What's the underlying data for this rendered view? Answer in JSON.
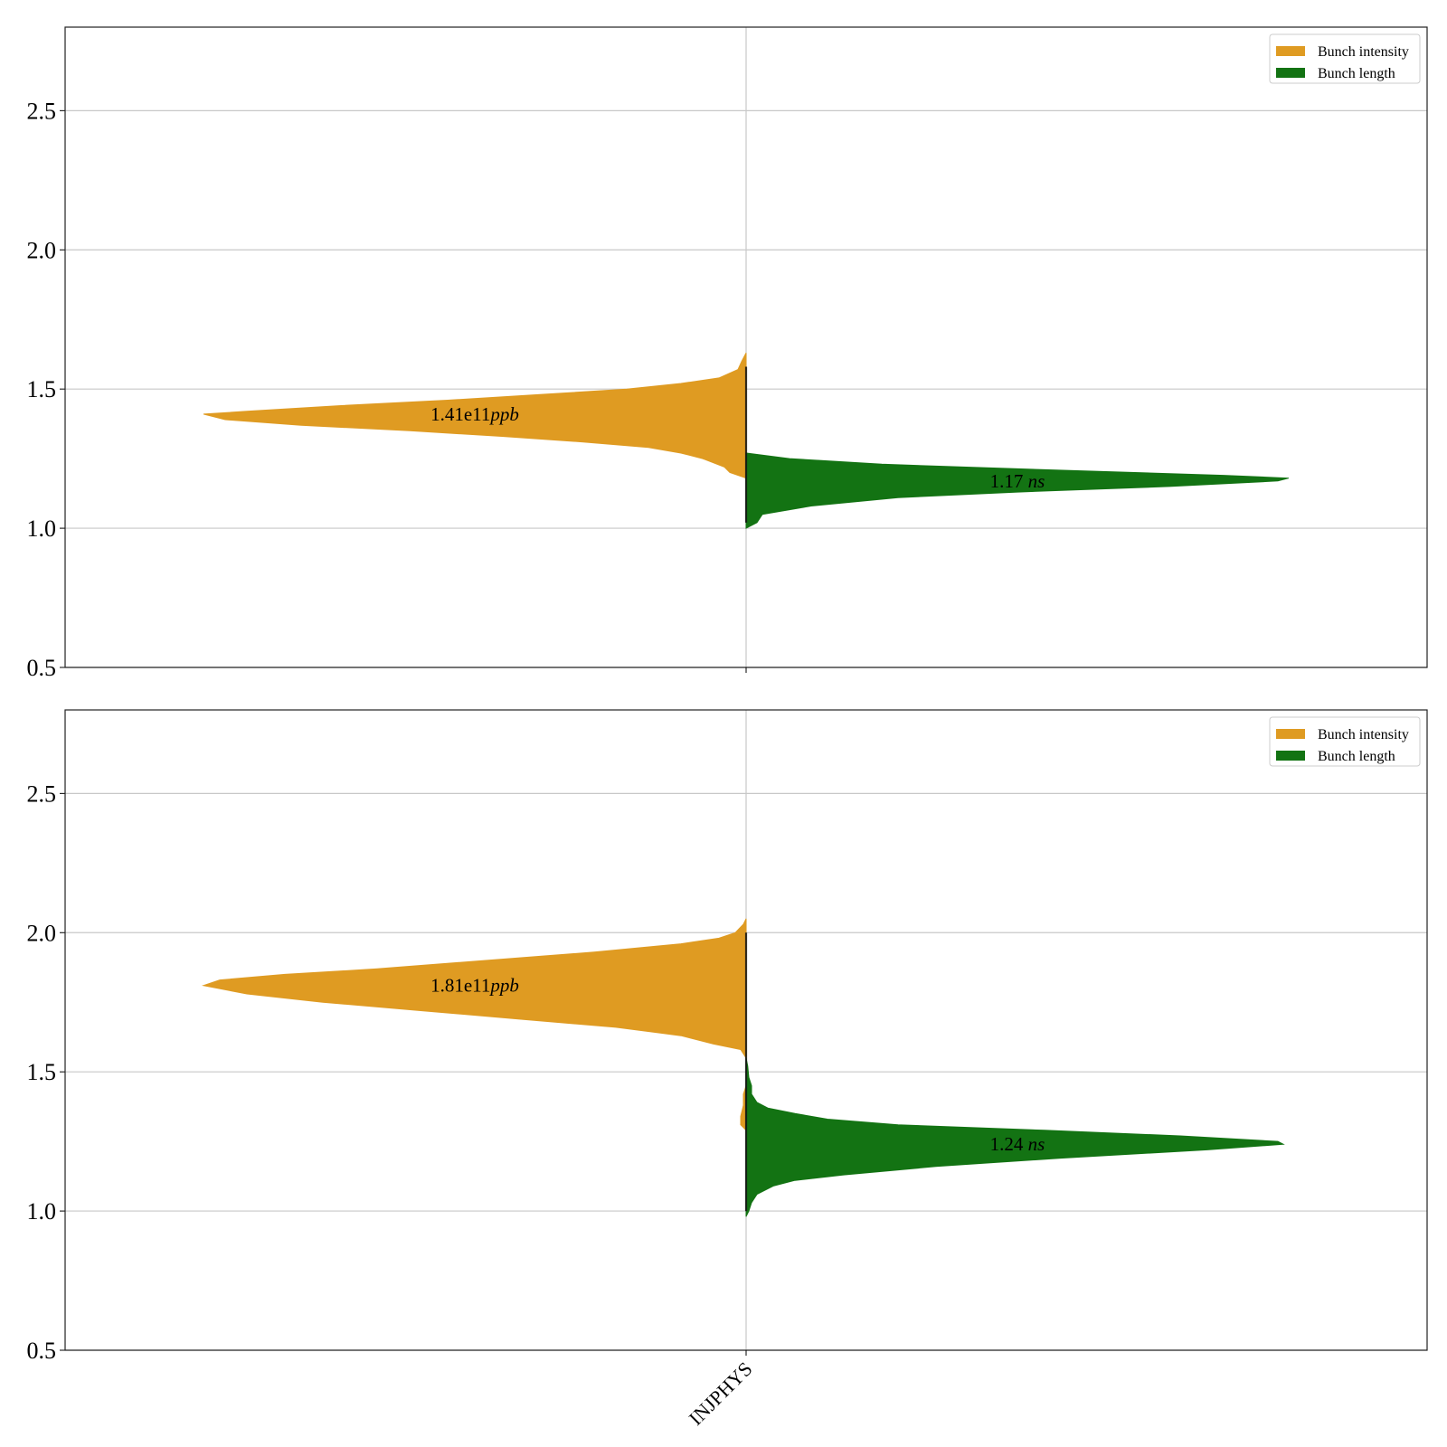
{
  "colors": {
    "intensity": "#df9b22",
    "length": "#137313",
    "grid": "#c8c8c8",
    "frame": "#222222",
    "median_line": "#111111"
  },
  "legend": {
    "placement": "upper-right",
    "entries": [
      {
        "label": "Bunch intensity",
        "series": "intensity"
      },
      {
        "label": "Bunch length",
        "series": "length"
      }
    ]
  },
  "x_category_label": "INJPHYS",
  "chart_data": [
    {
      "type": "split-violin",
      "panel": "top",
      "categories": [
        "INJPHYS"
      ],
      "ylim": [
        0.5,
        2.8
      ],
      "yticks": [
        "0.5",
        "1.0",
        "1.5",
        "2.0",
        "2.5"
      ],
      "grid": "horizontal",
      "legend": [
        "Bunch intensity",
        "Bunch length"
      ],
      "series": [
        {
          "name": "Bunch intensity",
          "side": "left",
          "annotation": {
            "value": "1.41e11",
            "unit": "ppb"
          },
          "median": 1.41,
          "profile": [
            [
              1.18,
              0.0
            ],
            [
              1.2,
              0.03
            ],
            [
              1.22,
              0.04
            ],
            [
              1.25,
              0.08
            ],
            [
              1.27,
              0.12
            ],
            [
              1.29,
              0.18
            ],
            [
              1.31,
              0.3
            ],
            [
              1.33,
              0.45
            ],
            [
              1.35,
              0.62
            ],
            [
              1.37,
              0.82
            ],
            [
              1.39,
              0.96
            ],
            [
              1.41,
              1.0
            ],
            [
              1.42,
              0.92
            ],
            [
              1.44,
              0.75
            ],
            [
              1.46,
              0.55
            ],
            [
              1.48,
              0.38
            ],
            [
              1.5,
              0.22
            ],
            [
              1.52,
              0.12
            ],
            [
              1.54,
              0.05
            ],
            [
              1.57,
              0.015
            ],
            [
              1.6,
              0.008
            ],
            [
              1.63,
              0.0
            ]
          ]
        },
        {
          "name": "Bunch length",
          "side": "right",
          "annotation": {
            "value": "1.17",
            "unit": "ns"
          },
          "median": 1.17,
          "profile": [
            [
              1.0,
              0.0
            ],
            [
              1.02,
              0.02
            ],
            [
              1.05,
              0.03
            ],
            [
              1.08,
              0.12
            ],
            [
              1.11,
              0.28
            ],
            [
              1.13,
              0.5
            ],
            [
              1.15,
              0.78
            ],
            [
              1.17,
              0.98
            ],
            [
              1.18,
              1.0
            ],
            [
              1.19,
              0.88
            ],
            [
              1.21,
              0.55
            ],
            [
              1.23,
              0.25
            ],
            [
              1.25,
              0.08
            ],
            [
              1.27,
              0.0
            ]
          ]
        }
      ]
    },
    {
      "type": "split-violin",
      "panel": "bottom",
      "categories": [
        "INJPHYS"
      ],
      "ylim": [
        0.5,
        2.8
      ],
      "yticks": [
        "0.5",
        "1.0",
        "1.5",
        "2.0",
        "2.5"
      ],
      "grid": "horizontal",
      "legend": [
        "Bunch intensity",
        "Bunch length"
      ],
      "series": [
        {
          "name": "Bunch intensity",
          "side": "left",
          "annotation": {
            "value": "1.81e11",
            "unit": "ppb"
          },
          "median": 1.81,
          "profile": [
            [
              1.29,
              0.0
            ],
            [
              1.31,
              0.01
            ],
            [
              1.34,
              0.01
            ],
            [
              1.38,
              0.005
            ],
            [
              1.42,
              0.005
            ],
            [
              1.45,
              0.0
            ],
            [
              1.52,
              0.0
            ],
            [
              1.55,
              0.0
            ],
            [
              1.58,
              0.01
            ],
            [
              1.6,
              0.06
            ],
            [
              1.63,
              0.12
            ],
            [
              1.66,
              0.24
            ],
            [
              1.69,
              0.42
            ],
            [
              1.72,
              0.6
            ],
            [
              1.75,
              0.78
            ],
            [
              1.78,
              0.92
            ],
            [
              1.81,
              1.0
            ],
            [
              1.83,
              0.97
            ],
            [
              1.85,
              0.85
            ],
            [
              1.87,
              0.68
            ],
            [
              1.9,
              0.48
            ],
            [
              1.93,
              0.28
            ],
            [
              1.96,
              0.12
            ],
            [
              1.98,
              0.05
            ],
            [
              2.0,
              0.02
            ],
            [
              2.03,
              0.005
            ],
            [
              2.05,
              0.0
            ]
          ]
        },
        {
          "name": "Bunch length",
          "side": "right",
          "annotation": {
            "value": "1.24",
            "unit": "ns"
          },
          "median": 1.24,
          "profile": [
            [
              0.98,
              0.0
            ],
            [
              1.0,
              0.005
            ],
            [
              1.03,
              0.01
            ],
            [
              1.06,
              0.02
            ],
            [
              1.09,
              0.05
            ],
            [
              1.11,
              0.09
            ],
            [
              1.13,
              0.18
            ],
            [
              1.16,
              0.35
            ],
            [
              1.19,
              0.58
            ],
            [
              1.22,
              0.85
            ],
            [
              1.24,
              0.99
            ],
            [
              1.25,
              0.98
            ],
            [
              1.27,
              0.8
            ],
            [
              1.29,
              0.55
            ],
            [
              1.31,
              0.28
            ],
            [
              1.33,
              0.15
            ],
            [
              1.35,
              0.09
            ],
            [
              1.37,
              0.04
            ],
            [
              1.39,
              0.02
            ],
            [
              1.42,
              0.01
            ],
            [
              1.45,
              0.01
            ],
            [
              1.48,
              0.005
            ],
            [
              1.52,
              0.003
            ],
            [
              1.55,
              0.0
            ]
          ]
        }
      ]
    }
  ]
}
